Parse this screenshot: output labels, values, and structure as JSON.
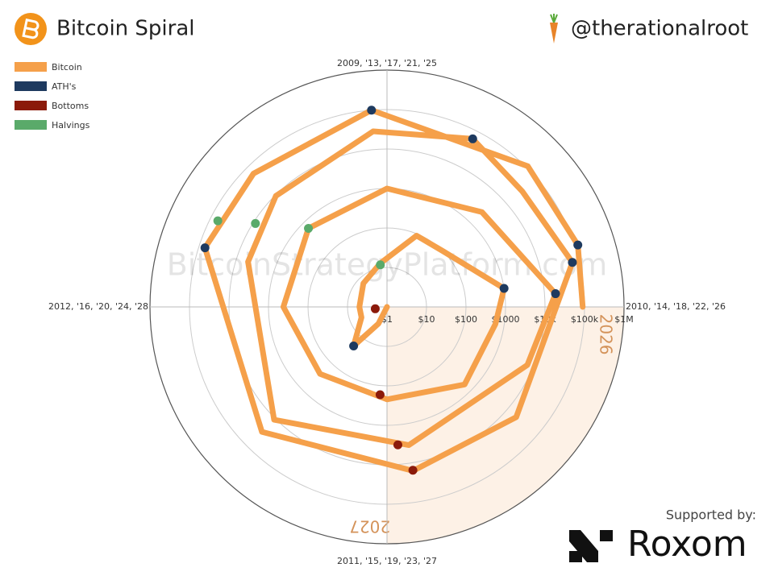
{
  "chart_data": {
    "type": "spiral",
    "title": "Bitcoin Spiral",
    "handle": "@therationalroot",
    "watermark": "BitcoinStrategyPlatform.com",
    "sponsor_label": "Supported by:",
    "sponsor": "Roxom",
    "log_scale": true,
    "rlim": [
      1,
      1000000
    ],
    "rticks": [
      {
        "value": 1,
        "label": "$1"
      },
      {
        "value": 10,
        "label": "$10"
      },
      {
        "value": 100,
        "label": "$100"
      },
      {
        "value": 1000,
        "label": "$1000"
      },
      {
        "value": 10000,
        "label": "$10k"
      },
      {
        "value": 100000,
        "label": "$100k"
      },
      {
        "value": 1000000,
        "label": "$1M"
      }
    ],
    "xticks": [
      {
        "value": 2009,
        "label": "2009, '13, '17, '21, '25"
      },
      {
        "value": 2010,
        "label": "2010, '14, '18, '22, '26"
      },
      {
        "value": 2011,
        "label": "2011, '15, '19, '23, '27"
      },
      {
        "value": 2012,
        "label": "2012, '16, '20, '24, '28"
      }
    ],
    "cycle_years": 4,
    "highlight_years": [
      2026,
      2027
    ],
    "highlight_color": "#fdf1e6",
    "series": [
      {
        "name": "Bitcoin",
        "color": "#f5a04a",
        "x": [
          2011.1,
          2011.3,
          2011.45,
          2011.75,
          2012.0,
          2012.5,
          2012.9,
          2013.25,
          2013.5,
          2013.9,
          2014.1,
          2014.5,
          2015.0,
          2015.5,
          2016.0,
          2016.5,
          2017.0,
          2017.5,
          2017.95,
          2018.25,
          2018.9,
          2019.5,
          2020.2,
          2020.5,
          2020.95,
          2021.3,
          2021.55,
          2021.85,
          2022.45,
          2022.9,
          2023.5,
          2024.2,
          2024.5,
          2024.95,
          2025.5,
          2025.8,
          2026.0
        ],
        "values": [
          1,
          3,
          20,
          5,
          5,
          7,
          13,
          90,
          100,
          1000,
          600,
          600,
          220,
          250,
          420,
          650,
          1000,
          2500,
          19000,
          7000,
          3500,
          11000,
          5000,
          9500,
          29000,
          60000,
          32000,
          67000,
          20000,
          16000,
          30000,
          70000,
          60000,
          100000,
          110000,
          120000,
          90000
        ]
      },
      {
        "name": "ATH's",
        "color": "#1e3a5f",
        "x": [
          2011.45,
          2013.9,
          2017.95,
          2021.3,
          2021.85,
          2024.2,
          2024.95,
          2025.8
        ],
        "values": [
          20,
          1000,
          19000,
          60000,
          67000,
          70000,
          100000,
          120000
        ]
      },
      {
        "name": "Bottoms",
        "color": "#8b1a0a",
        "x": [
          2011.9,
          2015.05,
          2018.95,
          2022.9
        ],
        "values": [
          2,
          170,
          3200,
          15500
        ]
      },
      {
        "name": "Halvings",
        "color": "#5aaa6a",
        "x": [
          2012.9,
          2016.5,
          2020.36,
          2024.3
        ],
        "values": [
          12,
          650,
          8800,
          64000
        ]
      }
    ]
  }
}
